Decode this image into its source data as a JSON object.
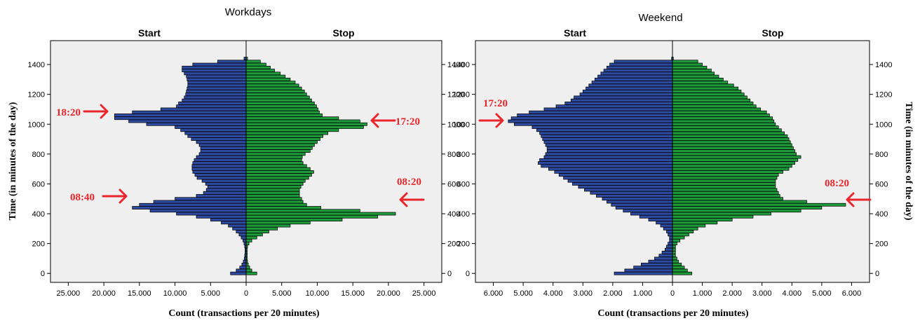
{
  "chart_data": [
    {
      "type": "bar",
      "orientation": "horizontal-population-pyramid",
      "title": "Workdays",
      "left_label": "Start",
      "right_label": "Stop",
      "xlabel": "Count (transactions per 20 minutes)",
      "ylabel": "Time (in minutes of the day)",
      "x_range": [
        -27500,
        27500
      ],
      "x_ticks": [
        -25000,
        -20000,
        -15000,
        -10000,
        -5000,
        0,
        5000,
        10000,
        15000,
        20000,
        25000
      ],
      "x_tick_labels": [
        "25.000",
        "20.000",
        "15.000",
        "10.000",
        "5.000",
        "0",
        "5.000",
        "10.000",
        "15.000",
        "20.000",
        "25.000"
      ],
      "y_range": [
        -60,
        1560
      ],
      "y_ticks": [
        0,
        200,
        400,
        600,
        800,
        1000,
        1200,
        1400
      ],
      "y_tick_labels": [
        "0",
        "200",
        "400",
        "600",
        "800",
        "1000",
        "1200",
        "1400"
      ],
      "bin_minutes": 20,
      "times": [
        0,
        20,
        40,
        60,
        80,
        100,
        120,
        140,
        160,
        180,
        200,
        220,
        240,
        260,
        280,
        300,
        320,
        340,
        360,
        380,
        400,
        420,
        440,
        460,
        480,
        500,
        520,
        540,
        560,
        580,
        600,
        620,
        640,
        660,
        680,
        700,
        720,
        740,
        760,
        780,
        800,
        820,
        840,
        860,
        880,
        900,
        920,
        940,
        960,
        980,
        1000,
        1020,
        1040,
        1060,
        1080,
        1100,
        1120,
        1140,
        1160,
        1180,
        1200,
        1220,
        1240,
        1260,
        1280,
        1300,
        1320,
        1340,
        1360,
        1380,
        1400,
        1420,
        1440
      ],
      "series": [
        {
          "name": "Start",
          "color": "#2e4a9e",
          "side": "left",
          "values": [
            2200,
            1400,
            900,
            600,
            400,
            250,
            200,
            150,
            150,
            200,
            300,
            450,
            700,
            1000,
            1400,
            1900,
            2500,
            3500,
            5000,
            7000,
            9800,
            13500,
            16000,
            15000,
            13000,
            10000,
            7000,
            6000,
            5600,
            5400,
            5700,
            6200,
            6900,
            7200,
            7500,
            7600,
            7600,
            7500,
            7300,
            7000,
            6600,
            6400,
            6400,
            6600,
            7000,
            7700,
            8200,
            8600,
            9200,
            10000,
            14000,
            16500,
            18500,
            18500,
            16000,
            12000,
            9800,
            9500,
            9000,
            8700,
            8500,
            8400,
            8300,
            8200,
            8200,
            8300,
            8400,
            8700,
            9000,
            9000,
            7500,
            4000,
            300
          ]
        },
        {
          "name": "Stop",
          "color": "#1e9a3a",
          "side": "right",
          "values": [
            1500,
            800,
            500,
            300,
            200,
            150,
            150,
            150,
            150,
            200,
            400,
            800,
            1500,
            2300,
            3200,
            4400,
            6200,
            9000,
            13500,
            18500,
            21000,
            16000,
            10500,
            8500,
            8000,
            7800,
            7500,
            7500,
            7500,
            7700,
            8000,
            8300,
            8800,
            9200,
            9500,
            9000,
            8500,
            8000,
            7800,
            7900,
            8300,
            9000,
            9300,
            9600,
            10000,
            10400,
            10800,
            11500,
            13000,
            16500,
            17000,
            16000,
            13000,
            10700,
            10300,
            10100,
            9900,
            9600,
            9200,
            8900,
            8500,
            8200,
            7800,
            7400,
            6900,
            6200,
            5500,
            4800,
            4000,
            3400,
            2800,
            2000,
            200
          ]
        }
      ],
      "annotations": [
        {
          "label": "18:20",
          "time": 1100,
          "side": "left"
        },
        {
          "label": "17:20",
          "time": 1040,
          "side": "right"
        },
        {
          "label": "08:40",
          "time": 520,
          "side": "left"
        },
        {
          "label": "08:20",
          "time": 500,
          "side": "right"
        }
      ]
    },
    {
      "type": "bar",
      "orientation": "horizontal-population-pyramid",
      "title": "Weekend",
      "left_label": "Start",
      "right_label": "Stop",
      "xlabel": "Count (transactions per 20 minutes)",
      "ylabel": "Time (in minutes of the day)",
      "x_range": [
        -6600,
        6600
      ],
      "x_ticks": [
        -6000,
        -5000,
        -4000,
        -3000,
        -2000,
        -1000,
        0,
        1000,
        2000,
        3000,
        4000,
        5000,
        6000
      ],
      "x_tick_labels": [
        "6.000",
        "5.000",
        "4.000",
        "3.000",
        "2.000",
        "1.000",
        "0",
        "1.000",
        "2.000",
        "3.000",
        "4.000",
        "5.000",
        "6.000"
      ],
      "y_range": [
        -60,
        1560
      ],
      "y_ticks": [
        0,
        200,
        400,
        600,
        800,
        1000,
        1200,
        1400
      ],
      "y_tick_labels": [
        "0",
        "200",
        "400",
        "600",
        "800",
        "1000",
        "1200",
        "1400"
      ],
      "bin_minutes": 20,
      "times": [
        0,
        20,
        40,
        60,
        80,
        100,
        120,
        140,
        160,
        180,
        200,
        220,
        240,
        260,
        280,
        300,
        320,
        340,
        360,
        380,
        400,
        420,
        440,
        460,
        480,
        500,
        520,
        540,
        560,
        580,
        600,
        620,
        640,
        660,
        680,
        700,
        720,
        740,
        760,
        780,
        800,
        820,
        840,
        860,
        880,
        900,
        920,
        940,
        960,
        980,
        1000,
        1020,
        1040,
        1060,
        1080,
        1100,
        1120,
        1140,
        1160,
        1180,
        1200,
        1220,
        1240,
        1260,
        1280,
        1300,
        1320,
        1340,
        1360,
        1380,
        1400,
        1420,
        1440
      ],
      "series": [
        {
          "name": "Start",
          "color": "#2e4a9e",
          "side": "left",
          "values": [
            1950,
            1600,
            1300,
            1050,
            800,
            600,
            450,
            350,
            250,
            200,
            150,
            100,
            100,
            150,
            200,
            300,
            400,
            550,
            800,
            1100,
            1400,
            1650,
            1900,
            2050,
            2200,
            2350,
            2550,
            2750,
            2950,
            3150,
            3350,
            3500,
            3650,
            3800,
            3950,
            4150,
            4400,
            4500,
            4450,
            4300,
            4250,
            4200,
            4200,
            4250,
            4300,
            4350,
            4400,
            4450,
            4550,
            4700,
            5300,
            5500,
            5400,
            5200,
            4800,
            4300,
            3900,
            3600,
            3400,
            3300,
            3100,
            3000,
            2900,
            2800,
            2700,
            2600,
            2500,
            2400,
            2300,
            2200,
            2100,
            1950,
            30
          ]
        },
        {
          "name": "Stop",
          "color": "#1e9a3a",
          "side": "right",
          "values": [
            650,
            500,
            400,
            300,
            200,
            150,
            100,
            100,
            100,
            100,
            150,
            250,
            400,
            550,
            700,
            850,
            1100,
            1500,
            2000,
            2700,
            3300,
            4300,
            5000,
            5800,
            4500,
            3700,
            3600,
            3550,
            3500,
            3450,
            3450,
            3450,
            3500,
            3550,
            3700,
            3900,
            4000,
            4100,
            4200,
            4300,
            4150,
            4100,
            4050,
            4000,
            3950,
            3900,
            3850,
            3750,
            3650,
            3550,
            3450,
            3400,
            3350,
            3250,
            3150,
            2950,
            2800,
            2700,
            2600,
            2500,
            2400,
            2300,
            2200,
            2050,
            1850,
            1700,
            1550,
            1400,
            1300,
            1150,
            1000,
            850,
            30
          ]
        }
      ],
      "annotations": [
        {
          "label": "17:20",
          "time": 1040,
          "side": "left"
        },
        {
          "label": "08:20",
          "time": 500,
          "side": "right"
        }
      ]
    }
  ]
}
